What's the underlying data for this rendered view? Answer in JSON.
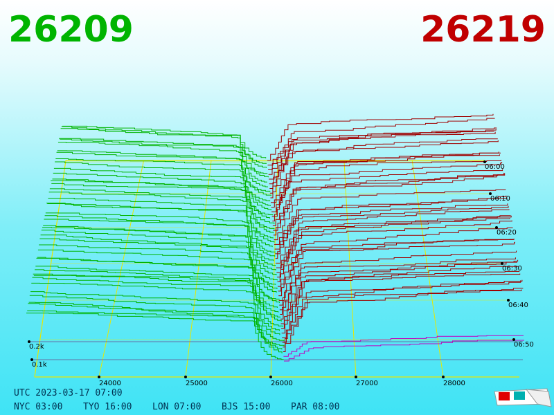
{
  "header": {
    "bid": "26209",
    "ask": "26219"
  },
  "axis": {
    "prices": [
      "24000",
      "25000",
      "26000",
      "27000",
      "28000"
    ],
    "times": [
      "06:00",
      "06:10",
      "06:20",
      "06:30",
      "06:40",
      "06:50"
    ],
    "depths": [
      "0.2k",
      "0.1k"
    ]
  },
  "footer": {
    "utc": "UTC 2023-03-17 07:00",
    "cities": [
      "NYC 03:00",
      "TYO 16:00",
      "LON 07:00",
      "BJS 15:00",
      "PAR 08:00"
    ]
  }
}
